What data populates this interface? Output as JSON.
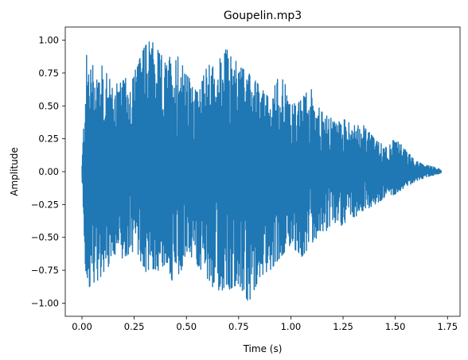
{
  "chart_data": {
    "type": "line",
    "title": "Goupelin.mp3",
    "xlabel": "Time (s)",
    "ylabel": "Amplitude",
    "xlim": [
      -0.08,
      1.81
    ],
    "ylim": [
      -1.1,
      1.1
    ],
    "xticks": [
      0.0,
      0.25,
      0.5,
      0.75,
      1.0,
      1.25,
      1.5,
      1.75
    ],
    "xtick_labels": [
      "0.00",
      "0.25",
      "0.50",
      "0.75",
      "1.00",
      "1.25",
      "1.50",
      "1.75"
    ],
    "yticks": [
      1.0,
      0.75,
      0.5,
      0.25,
      0.0,
      -0.25,
      -0.5,
      -0.75,
      -1.0
    ],
    "ytick_labels": [
      "1.00",
      "0.75",
      "0.50",
      "0.25",
      "0.00",
      "−0.25",
      "−0.50",
      "−0.75",
      "−1.00"
    ],
    "grid": false,
    "legend": false,
    "series": [
      {
        "color": "#1f77b4",
        "duration": 1.72,
        "envelope": {
          "x": [
            0.0,
            0.02,
            0.05,
            0.1,
            0.15,
            0.2,
            0.25,
            0.3,
            0.33,
            0.4,
            0.45,
            0.5,
            0.55,
            0.6,
            0.65,
            0.7,
            0.75,
            0.8,
            0.85,
            0.9,
            0.95,
            1.0,
            1.05,
            1.1,
            1.15,
            1.2,
            1.25,
            1.3,
            1.35,
            1.4,
            1.45,
            1.5,
            1.55,
            1.6,
            1.65,
            1.7,
            1.72
          ],
          "y_max": [
            0.05,
            0.9,
            0.85,
            0.8,
            0.65,
            0.7,
            0.75,
            0.95,
            1.0,
            0.85,
            0.9,
            0.75,
            0.6,
            0.8,
            0.85,
            0.95,
            0.8,
            0.75,
            0.65,
            0.55,
            0.8,
            0.5,
            0.55,
            0.65,
            0.45,
            0.4,
            0.4,
            0.35,
            0.35,
            0.25,
            0.2,
            0.25,
            0.17,
            0.08,
            0.05,
            0.03,
            0.01
          ],
          "y_min": [
            -0.05,
            -0.9,
            -0.85,
            -0.8,
            -0.7,
            -0.65,
            -0.6,
            -0.75,
            -0.8,
            -0.7,
            -0.9,
            -0.6,
            -0.7,
            -0.85,
            -0.9,
            -0.9,
            -0.85,
            -1.0,
            -0.8,
            -0.75,
            -0.65,
            -0.55,
            -0.65,
            -0.55,
            -0.45,
            -0.45,
            -0.4,
            -0.35,
            -0.3,
            -0.25,
            -0.2,
            -0.17,
            -0.12,
            -0.07,
            -0.04,
            -0.02,
            -0.01
          ]
        }
      }
    ]
  }
}
